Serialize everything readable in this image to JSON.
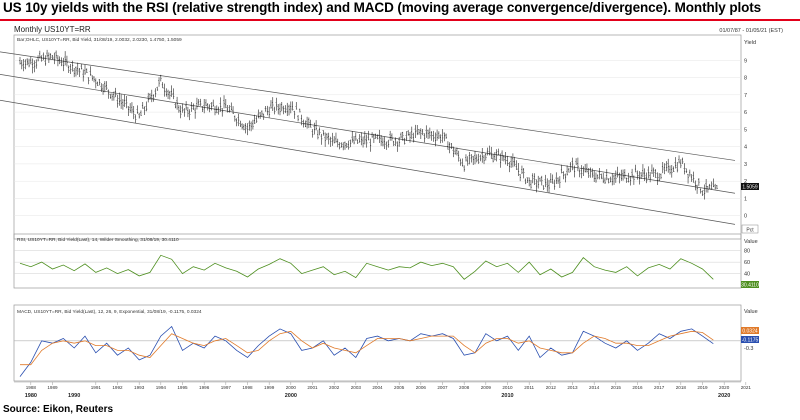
{
  "title": "US 10y yields with the RSI (relative strength index) and MACD (moving average convergence/divergence). Monthly plots",
  "source": "Source: Eikon, Reuters",
  "colors": {
    "accent": "#e2001a",
    "rsi": "#4e8f20",
    "macd": "#2a4fb0",
    "signal": "#e07a2a",
    "price": "#111111",
    "channel": "#555555"
  },
  "chart_data": [
    {
      "type": "candlestick",
      "title": "Monthly US10YT=RR",
      "date_range": "01/07/87 - 01/05/21 (EST)",
      "legend": "Bar;OHLC, US10YT=RR, Bid Yield, 31/08/19, 2.0032, 2.0230, 1.4750, 1.5059",
      "ylabel": "Yield",
      "ylim": [
        -1,
        10
      ],
      "yticks": [
        0,
        1,
        2,
        3,
        4,
        5,
        6,
        7,
        8,
        9
      ],
      "last_value": "1.5059",
      "x": [
        1988,
        1989,
        1990,
        1991,
        1992,
        1993,
        1994,
        1995,
        1996,
        1997,
        1998,
        1999,
        2000,
        2001,
        2002,
        2003,
        2004,
        2005,
        2006,
        2007,
        2008,
        2009,
        2010,
        2011,
        2012,
        2013,
        2014,
        2015,
        2016,
        2017,
        2018,
        2019
      ],
      "values": [
        8.9,
        9.2,
        8.6,
        7.9,
        6.8,
        5.7,
        7.8,
        6.0,
        6.4,
        6.3,
        5.1,
        6.2,
        6.4,
        5.0,
        4.2,
        4.3,
        4.4,
        4.4,
        4.8,
        4.6,
        3.0,
        3.6,
        3.3,
        2.0,
        1.8,
        2.9,
        2.3,
        2.2,
        2.4,
        2.4,
        3.1,
        1.5
      ],
      "channel_lines": [
        {
          "name": "upper",
          "x": [
            1986.5,
            2020.5
          ],
          "y": [
            9.5,
            3.2
          ]
        },
        {
          "name": "middle",
          "x": [
            1986.5,
            2020.5
          ],
          "y": [
            8.2,
            1.3
          ]
        },
        {
          "name": "lower",
          "x": [
            1986.5,
            2020.5
          ],
          "y": [
            6.7,
            -0.5
          ]
        }
      ],
      "xaxis_years": [
        "1988",
        "1989",
        "1991",
        "1992",
        "1993",
        "1994",
        "1995",
        "1996",
        "1997",
        "1998",
        "1999",
        "2000",
        "2001",
        "2002",
        "2003",
        "2004",
        "2005",
        "2006",
        "2007",
        "2008",
        "2009",
        "2010",
        "2011",
        "2012",
        "2013",
        "2014",
        "2015",
        "2016",
        "2017",
        "2018",
        "2019",
        "2020",
        "2021"
      ],
      "decades": [
        "1980",
        "1990",
        "2000",
        "2010",
        "2020"
      ],
      "pct_label": "Pct"
    },
    {
      "type": "line",
      "legend": "RSI, US10YT=RR, Bid Yield(Last), 14, Wilder Smoothing, 31/08/19, 30.4110",
      "ylabel": "Value",
      "yticks": [
        40,
        60,
        80
      ],
      "ylim": [
        20,
        90
      ],
      "last_value": "30.4110",
      "x": [
        1987.5,
        1988,
        1988.5,
        1989,
        1989.5,
        1990,
        1990.5,
        1991,
        1991.5,
        1992,
        1992.5,
        1993,
        1993.5,
        1994,
        1994.5,
        1995,
        1995.5,
        1996,
        1996.5,
        1997,
        1997.5,
        1998,
        1998.5,
        1999,
        1999.5,
        2000,
        2000.5,
        2001,
        2001.5,
        2002,
        2002.5,
        2003,
        2003.5,
        2004,
        2004.5,
        2005,
        2005.5,
        2006,
        2006.5,
        2007,
        2007.5,
        2008,
        2008.5,
        2009,
        2009.5,
        2010,
        2010.5,
        2011,
        2011.5,
        2012,
        2012.5,
        2013,
        2013.5,
        2014,
        2014.5,
        2015,
        2015.5,
        2016,
        2016.5,
        2017,
        2017.5,
        2018,
        2018.5,
        2019,
        2019.5
      ],
      "values": [
        58,
        52,
        60,
        48,
        55,
        45,
        57,
        42,
        50,
        40,
        47,
        36,
        42,
        72,
        65,
        40,
        52,
        46,
        58,
        50,
        44,
        34,
        48,
        56,
        66,
        58,
        40,
        46,
        52,
        38,
        44,
        33,
        58,
        52,
        46,
        52,
        50,
        60,
        54,
        58,
        52,
        30,
        44,
        62,
        52,
        58,
        42,
        60,
        38,
        48,
        34,
        42,
        68,
        52,
        46,
        42,
        52,
        36,
        50,
        56,
        48,
        66,
        58,
        48,
        30
      ],
      "series": [
        {
          "name": "RSI",
          "values": [
            58,
            52,
            60,
            48,
            55,
            45,
            57,
            42,
            50,
            40,
            47,
            36,
            42,
            72,
            65,
            40,
            52,
            46,
            58,
            50,
            44,
            34,
            48,
            56,
            66,
            58,
            40,
            46,
            52,
            38,
            44,
            33,
            58,
            52,
            46,
            52,
            50,
            60,
            54,
            58,
            52,
            30,
            44,
            62,
            52,
            58,
            42,
            60,
            38,
            48,
            34,
            42,
            68,
            52,
            46,
            42,
            52,
            36,
            50,
            56,
            48,
            66,
            58,
            48,
            30
          ]
        }
      ]
    },
    {
      "type": "line",
      "legend": "MACD, US10YT=RR, Bid Yield(Last), 12, 26, 9, Exponential, 31/08/19, -0.1175, 0.0324",
      "ylabel": "Value",
      "yticks": [
        -0.3
      ],
      "ylim": [
        -1.6,
        1.0
      ],
      "last_values": {
        "signal": "0.0324",
        "macd": "-0.1175"
      },
      "x": [
        1987.5,
        1988,
        1988.5,
        1989,
        1989.5,
        1990,
        1990.5,
        1991,
        1991.5,
        1992,
        1992.5,
        1993,
        1993.5,
        1994,
        1994.5,
        1995,
        1995.5,
        1996,
        1996.5,
        1997,
        1997.5,
        1998,
        1998.5,
        1999,
        1999.5,
        2000,
        2000.5,
        2001,
        2001.5,
        2002,
        2002.5,
        2003,
        2003.5,
        2004,
        2004.5,
        2005,
        2005.5,
        2006,
        2006.5,
        2007,
        2007.5,
        2008,
        2008.5,
        2009,
        2009.5,
        2010,
        2010.5,
        2011,
        2011.5,
        2012,
        2012.5,
        2013,
        2013.5,
        2014,
        2014.5,
        2015,
        2015.5,
        2016,
        2016.5,
        2017,
        2017.5,
        2018,
        2018.5,
        2019,
        2019.5
      ],
      "series": [
        {
          "name": "MACD",
          "values": [
            -1.5,
            -0.9,
            0.0,
            -0.1,
            0.1,
            -0.3,
            0.2,
            -0.5,
            -0.1,
            -0.6,
            -0.3,
            -0.8,
            -0.6,
            0.2,
            0.6,
            -0.4,
            -0.1,
            -0.3,
            0.2,
            0.0,
            -0.4,
            -0.7,
            -0.2,
            0.2,
            0.5,
            0.3,
            -0.4,
            -0.3,
            0.0,
            -0.6,
            -0.3,
            -0.7,
            0.1,
            0.2,
            0.0,
            0.1,
            0.0,
            0.3,
            0.2,
            0.3,
            0.1,
            -0.6,
            -0.5,
            0.3,
            0.0,
            0.2,
            -0.4,
            0.2,
            -0.7,
            -0.3,
            -0.6,
            -0.5,
            0.4,
            0.2,
            -0.1,
            -0.3,
            0.0,
            -0.4,
            -0.1,
            0.3,
            0.1,
            0.4,
            0.5,
            0.2,
            -0.12
          ]
        },
        {
          "name": "Signal",
          "values": [
            -1.0,
            -1.0,
            -0.4,
            -0.1,
            0.0,
            -0.1,
            0.0,
            -0.2,
            -0.2,
            -0.4,
            -0.4,
            -0.6,
            -0.7,
            -0.2,
            0.3,
            0.1,
            -0.1,
            -0.2,
            0.0,
            0.1,
            -0.2,
            -0.5,
            -0.4,
            0.0,
            0.3,
            0.4,
            0.0,
            -0.3,
            -0.1,
            -0.3,
            -0.4,
            -0.5,
            -0.2,
            0.1,
            0.1,
            0.1,
            0.0,
            0.1,
            0.2,
            0.2,
            0.2,
            -0.2,
            -0.5,
            -0.1,
            0.1,
            0.1,
            -0.1,
            0.0,
            -0.3,
            -0.4,
            -0.5,
            -0.5,
            -0.1,
            0.2,
            0.1,
            -0.1,
            -0.1,
            -0.2,
            -0.2,
            0.0,
            0.2,
            0.3,
            0.4,
            0.35,
            0.03
          ]
        }
      ]
    }
  ]
}
